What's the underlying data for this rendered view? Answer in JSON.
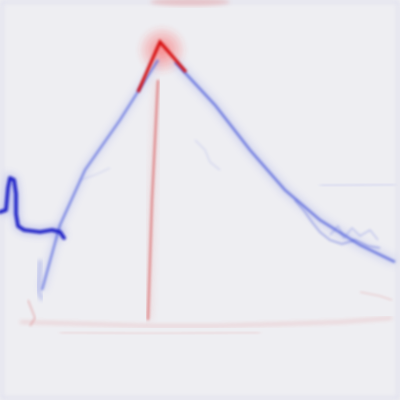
{
  "image": {
    "background": "#eeeef2",
    "positive_color": "#d40000",
    "negative_color": "#1f2fd6",
    "neutral_color": "#eeeef2"
  }
}
